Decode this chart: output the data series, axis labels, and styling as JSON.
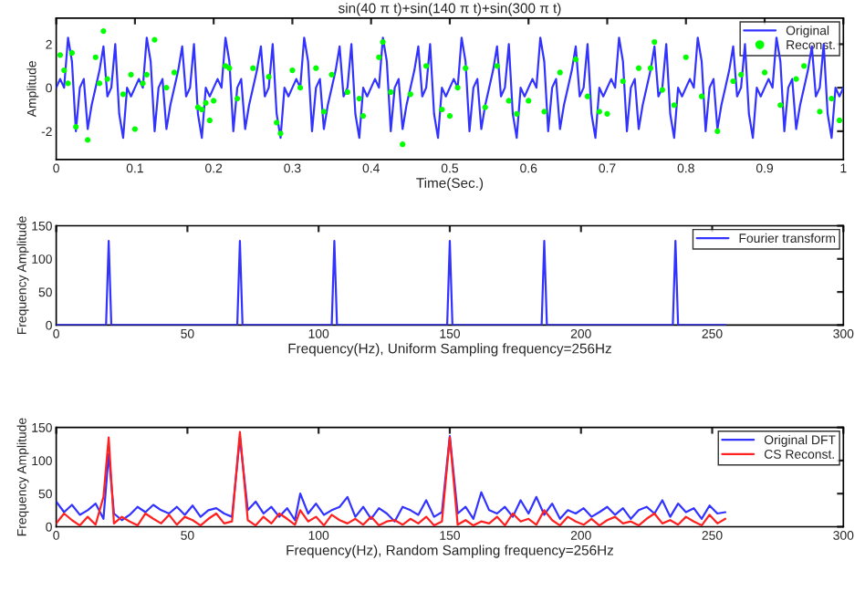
{
  "chart_data": [
    {
      "type": "line",
      "title": "sin(40 π t)+sin(140 π t)+sin(300 π t)",
      "xlabel": "Time(Sec.)",
      "ylabel": "Amplitude",
      "xlim": [
        0,
        1
      ],
      "xticks": [
        0,
        0.1,
        0.2,
        0.3,
        0.4,
        0.5,
        0.6,
        0.7,
        0.8,
        0.9,
        1
      ],
      "ylim": [
        -3.3,
        3.2
      ],
      "yticks": [
        -2,
        0,
        2
      ],
      "legend": "top right",
      "grid": false,
      "series": [
        {
          "name": "Original",
          "color": "#3333ff",
          "marker": "none",
          "x": [
            0,
            0.005,
            0.01,
            0.015,
            0.02,
            0.025,
            0.03,
            0.035,
            0.04,
            0.045,
            0.05,
            0.055,
            0.06,
            0.065,
            0.07,
            0.075,
            0.08,
            0.085,
            0.09,
            0.095,
            0.1,
            0.105,
            0.11,
            0.115,
            0.12,
            0.125,
            0.13,
            0.135,
            0.14,
            0.145,
            0.15,
            0.155,
            0.16,
            0.165,
            0.17,
            0.175,
            0.18,
            0.185,
            0.19,
            0.195,
            0.2,
            0.205,
            0.21,
            0.215,
            0.22,
            0.225,
            0.23,
            0.235,
            0.24,
            0.245,
            0.25,
            0.255,
            0.26,
            0.265,
            0.27,
            0.275,
            0.28,
            0.285,
            0.29,
            0.295,
            0.3,
            0.305,
            0.31,
            0.315,
            0.32,
            0.325,
            0.33,
            0.335,
            0.34,
            0.345,
            0.35,
            0.355,
            0.36,
            0.365,
            0.37,
            0.375,
            0.38,
            0.385,
            0.39,
            0.395,
            0.4,
            0.405,
            0.41,
            0.415,
            0.42,
            0.425,
            0.43,
            0.435,
            0.44,
            0.445,
            0.45,
            0.455,
            0.46,
            0.465,
            0.47,
            0.475,
            0.48,
            0.485,
            0.49,
            0.495,
            0.5,
            0.505,
            0.51,
            0.515,
            0.52,
            0.525,
            0.53,
            0.535,
            0.54,
            0.545,
            0.55,
            0.555,
            0.56,
            0.565,
            0.57,
            0.575,
            0.58,
            0.585,
            0.59,
            0.595,
            0.6,
            0.605,
            0.61,
            0.615,
            0.62,
            0.625,
            0.63,
            0.635,
            0.64,
            0.645,
            0.65,
            0.655,
            0.66,
            0.665,
            0.67,
            0.675,
            0.68,
            0.685,
            0.69,
            0.695,
            0.7,
            0.705,
            0.71,
            0.715,
            0.72,
            0.725,
            0.73,
            0.735,
            0.74,
            0.745,
            0.75,
            0.755,
            0.76,
            0.765,
            0.77,
            0.775,
            0.78,
            0.785,
            0.79,
            0.795,
            0.8,
            0.805,
            0.81,
            0.815,
            0.82,
            0.825,
            0.83,
            0.835,
            0.84,
            0.845,
            0.85,
            0.855,
            0.86,
            0.865,
            0.87,
            0.875,
            0.88,
            0.885,
            0.89,
            0.895,
            0.9,
            0.905,
            0.91,
            0.915,
            0.92,
            0.925,
            0.93,
            0.935,
            0.94,
            0.945,
            0.95,
            0.955,
            0.96,
            0.965,
            0.97,
            0.975,
            0.98,
            0.985,
            0.99,
            0.995,
            1
          ],
          "values": [
            0,
            0.4,
            0,
            2.3,
            1.2,
            -2,
            0,
            0.4,
            -1.9,
            -0.8,
            0,
            0.8,
            1.9,
            -0.4,
            0,
            2,
            -1.2,
            -2.3,
            0,
            -0.4,
            0,
            0.4,
            0,
            2.3,
            1.2,
            -2,
            0,
            0.4,
            -1.9,
            -0.8,
            0,
            0.8,
            1.9,
            -0.4,
            0,
            2,
            -1.2,
            -2.3,
            0,
            -0.4,
            0,
            0.4,
            0,
            2.3,
            1.2,
            -2,
            0,
            0.4,
            -1.9,
            -0.8,
            0,
            0.8,
            1.9,
            -0.4,
            0,
            2,
            -1.2,
            -2.3,
            0,
            -0.4,
            0,
            0.4,
            0,
            2.3,
            1.2,
            -2,
            0,
            0.4,
            -1.9,
            -0.8,
            0,
            0.8,
            1.9,
            -0.4,
            0,
            2,
            -1.2,
            -2.3,
            0,
            -0.4,
            0,
            0.4,
            0,
            2.3,
            1.2,
            -2,
            0,
            0.4,
            -1.9,
            -0.8,
            0,
            0.8,
            1.9,
            -0.4,
            0,
            2,
            -1.2,
            -2.3,
            0,
            -0.4,
            0,
            0.4,
            0,
            2.3,
            1.2,
            -2,
            0,
            0.4,
            -1.9,
            -0.8,
            0,
            0.8,
            1.9,
            -0.4,
            0,
            2,
            -1.2,
            -2.3,
            0,
            -0.4,
            0,
            0.4,
            0,
            2.3,
            1.2,
            -2,
            0,
            0.4,
            -1.9,
            -0.8,
            0,
            0.8,
            1.9,
            -0.4,
            0,
            2,
            -1.2,
            -2.3,
            0,
            -0.4,
            0,
            0.4,
            0,
            2.3,
            1.2,
            -2,
            0,
            0.4,
            -1.9,
            -0.8,
            0,
            0.8,
            1.9,
            -0.4,
            0,
            2,
            -1.2,
            -2.3,
            0,
            -0.4,
            0,
            0.4,
            0,
            2.3,
            1.2,
            -2,
            0,
            0.4,
            -1.9,
            -0.8,
            0,
            0.8,
            1.9,
            -0.4,
            0,
            2,
            -1.2,
            -2.3,
            0,
            -0.4,
            0,
            0.4,
            0,
            2.3,
            1.2,
            -2,
            0,
            0.4,
            -1.9,
            -0.8,
            0,
            0.8,
            1.9,
            -0.4,
            0,
            2,
            -1.2,
            -2.3,
            0,
            -0.4,
            0
          ]
        },
        {
          "name": "Reconst.",
          "type": "scatter",
          "color": "#00ff00",
          "marker": "circle",
          "x": [
            0.005,
            0.01,
            0.015,
            0.02,
            0.025,
            0.04,
            0.05,
            0.055,
            0.06,
            0.065,
            0.085,
            0.095,
            0.1,
            0.11,
            0.115,
            0.125,
            0.14,
            0.15,
            0.18,
            0.185,
            0.19,
            0.195,
            0.2,
            0.215,
            0.22,
            0.23,
            0.25,
            0.27,
            0.28,
            0.285,
            0.3,
            0.31,
            0.33,
            0.34,
            0.35,
            0.37,
            0.385,
            0.39,
            0.41,
            0.415,
            0.425,
            0.44,
            0.45,
            0.47,
            0.49,
            0.5,
            0.51,
            0.52,
            0.545,
            0.56,
            0.575,
            0.585,
            0.6,
            0.62,
            0.64,
            0.66,
            0.675,
            0.69,
            0.7,
            0.72,
            0.74,
            0.755,
            0.76,
            0.77,
            0.785,
            0.8,
            0.82,
            0.84,
            0.86,
            0.87,
            0.9,
            0.92,
            0.94,
            0.95,
            0.97,
            0.985,
            0.995
          ],
          "values": [
            1.5,
            0.8,
            0.2,
            1.6,
            -1.8,
            -2.4,
            1.4,
            0.2,
            2.6,
            0.4,
            -0.3,
            0.6,
            -1.9,
            0.2,
            0.6,
            2.2,
            0.0,
            0.7,
            -0.9,
            -1.0,
            -0.7,
            -1.5,
            -0.6,
            1.0,
            0.9,
            -0.5,
            0.9,
            0.5,
            -1.6,
            -2.1,
            0.8,
            0.0,
            0.9,
            -1.1,
            0.6,
            -0.2,
            -0.5,
            -1.3,
            1.4,
            2.1,
            -0.2,
            -2.6,
            -0.3,
            1.0,
            -1.0,
            -1.3,
            0.0,
            0.9,
            -0.9,
            1.0,
            -0.6,
            -1.2,
            -0.6,
            -1.1,
            0.7,
            1.3,
            -0.4,
            -1.1,
            -1.2,
            0.3,
            0.9,
            0.9,
            2.1,
            -0.1,
            -0.8,
            1.4,
            -0.4,
            -2.0,
            0.3,
            0.6,
            0.7,
            -0.8,
            0.4,
            1.0,
            -1.1,
            -0.5,
            -1.5
          ]
        }
      ]
    },
    {
      "type": "line",
      "xlabel": "Frequency(Hz), Uniform Sampling frequency=256Hz",
      "ylabel": "Frequency Amplitude",
      "xlim": [
        0,
        300
      ],
      "xticks": [
        0,
        50,
        100,
        150,
        200,
        250,
        300
      ],
      "ylim": [
        0,
        150
      ],
      "yticks": [
        0,
        50,
        100,
        150
      ],
      "legend": "top right",
      "grid": false,
      "series": [
        {
          "name": "Fourier transform",
          "color": "#3333ff",
          "marker": "none",
          "x": [
            0,
            19,
            20,
            21,
            69,
            70,
            71,
            105,
            106,
            107,
            149,
            150,
            151,
            185,
            186,
            187,
            235,
            236,
            237,
            255
          ],
          "values": [
            0,
            0,
            127,
            0,
            0,
            127,
            0,
            0,
            127,
            0,
            0,
            127,
            0,
            0,
            127,
            0,
            0,
            127,
            0,
            0
          ]
        }
      ]
    },
    {
      "type": "line",
      "xlabel": "Frequency(Hz), Random Sampling frequency=256Hz",
      "ylabel": "Frequency Amplitude",
      "xlim": [
        0,
        300
      ],
      "xticks": [
        0,
        50,
        100,
        150,
        200,
        250,
        300
      ],
      "ylim": [
        0,
        150
      ],
      "yticks": [
        0,
        50,
        100,
        150
      ],
      "legend": "top right",
      "grid": false,
      "series": [
        {
          "name": "Original DFT",
          "color": "#3333ff",
          "marker": "none",
          "x": [
            0,
            3,
            6,
            9,
            12,
            15,
            18,
            20,
            22,
            25,
            28,
            31,
            34,
            37,
            40,
            43,
            46,
            49,
            52,
            55,
            58,
            61,
            64,
            67,
            70,
            73,
            76,
            79,
            82,
            85,
            88,
            91,
            93,
            96,
            99,
            102,
            105,
            108,
            111,
            114,
            117,
            120,
            123,
            126,
            129,
            132,
            135,
            138,
            141,
            144,
            147,
            150,
            153,
            156,
            159,
            162,
            165,
            168,
            171,
            174,
            177,
            180,
            183,
            186,
            189,
            192,
            195,
            198,
            201,
            204,
            207,
            210,
            213,
            216,
            219,
            222,
            225,
            228,
            231,
            234,
            237,
            240,
            243,
            246,
            249,
            252,
            255
          ],
          "values": [
            38,
            22,
            33,
            18,
            25,
            35,
            12,
            110,
            20,
            10,
            18,
            30,
            22,
            33,
            25,
            20,
            30,
            18,
            32,
            15,
            25,
            28,
            20,
            15,
            135,
            25,
            38,
            20,
            30,
            15,
            28,
            10,
            50,
            20,
            35,
            18,
            25,
            30,
            45,
            15,
            30,
            12,
            28,
            20,
            8,
            30,
            25,
            18,
            40,
            15,
            22,
            137,
            20,
            30,
            12,
            52,
            25,
            20,
            30,
            15,
            40,
            20,
            45,
            18,
            35,
            12,
            25,
            20,
            28,
            15,
            22,
            30,
            18,
            28,
            12,
            25,
            30,
            20,
            40,
            15,
            35,
            22,
            28,
            12,
            32,
            20,
            22
          ]
        },
        {
          "name": "CS Reconst.",
          "color": "#ff2020",
          "marker": "none",
          "x": [
            0,
            3,
            6,
            9,
            12,
            15,
            18,
            20,
            22,
            25,
            28,
            31,
            34,
            37,
            40,
            43,
            46,
            49,
            52,
            55,
            58,
            61,
            64,
            67,
            70,
            73,
            76,
            79,
            82,
            85,
            88,
            91,
            93,
            96,
            99,
            102,
            105,
            108,
            111,
            114,
            117,
            120,
            123,
            126,
            129,
            132,
            135,
            138,
            141,
            144,
            147,
            150,
            153,
            156,
            159,
            162,
            165,
            168,
            171,
            174,
            177,
            180,
            183,
            186,
            189,
            192,
            195,
            198,
            201,
            204,
            207,
            210,
            213,
            216,
            219,
            222,
            225,
            228,
            231,
            234,
            237,
            240,
            243,
            246,
            249,
            252,
            255
          ],
          "values": [
            5,
            20,
            10,
            2,
            15,
            3,
            45,
            135,
            5,
            15,
            8,
            2,
            20,
            12,
            5,
            18,
            3,
            15,
            10,
            2,
            12,
            20,
            5,
            8,
            143,
            10,
            2,
            15,
            5,
            20,
            12,
            3,
            25,
            8,
            15,
            2,
            18,
            10,
            5,
            12,
            3,
            15,
            2,
            8,
            10,
            3,
            12,
            5,
            15,
            2,
            8,
            135,
            3,
            10,
            2,
            8,
            5,
            15,
            2,
            20,
            8,
            12,
            3,
            25,
            10,
            2,
            15,
            8,
            3,
            12,
            2,
            10,
            15,
            5,
            8,
            2,
            12,
            20,
            5,
            10,
            3,
            15,
            8,
            2,
            18,
            5,
            12
          ]
        }
      ]
    }
  ]
}
